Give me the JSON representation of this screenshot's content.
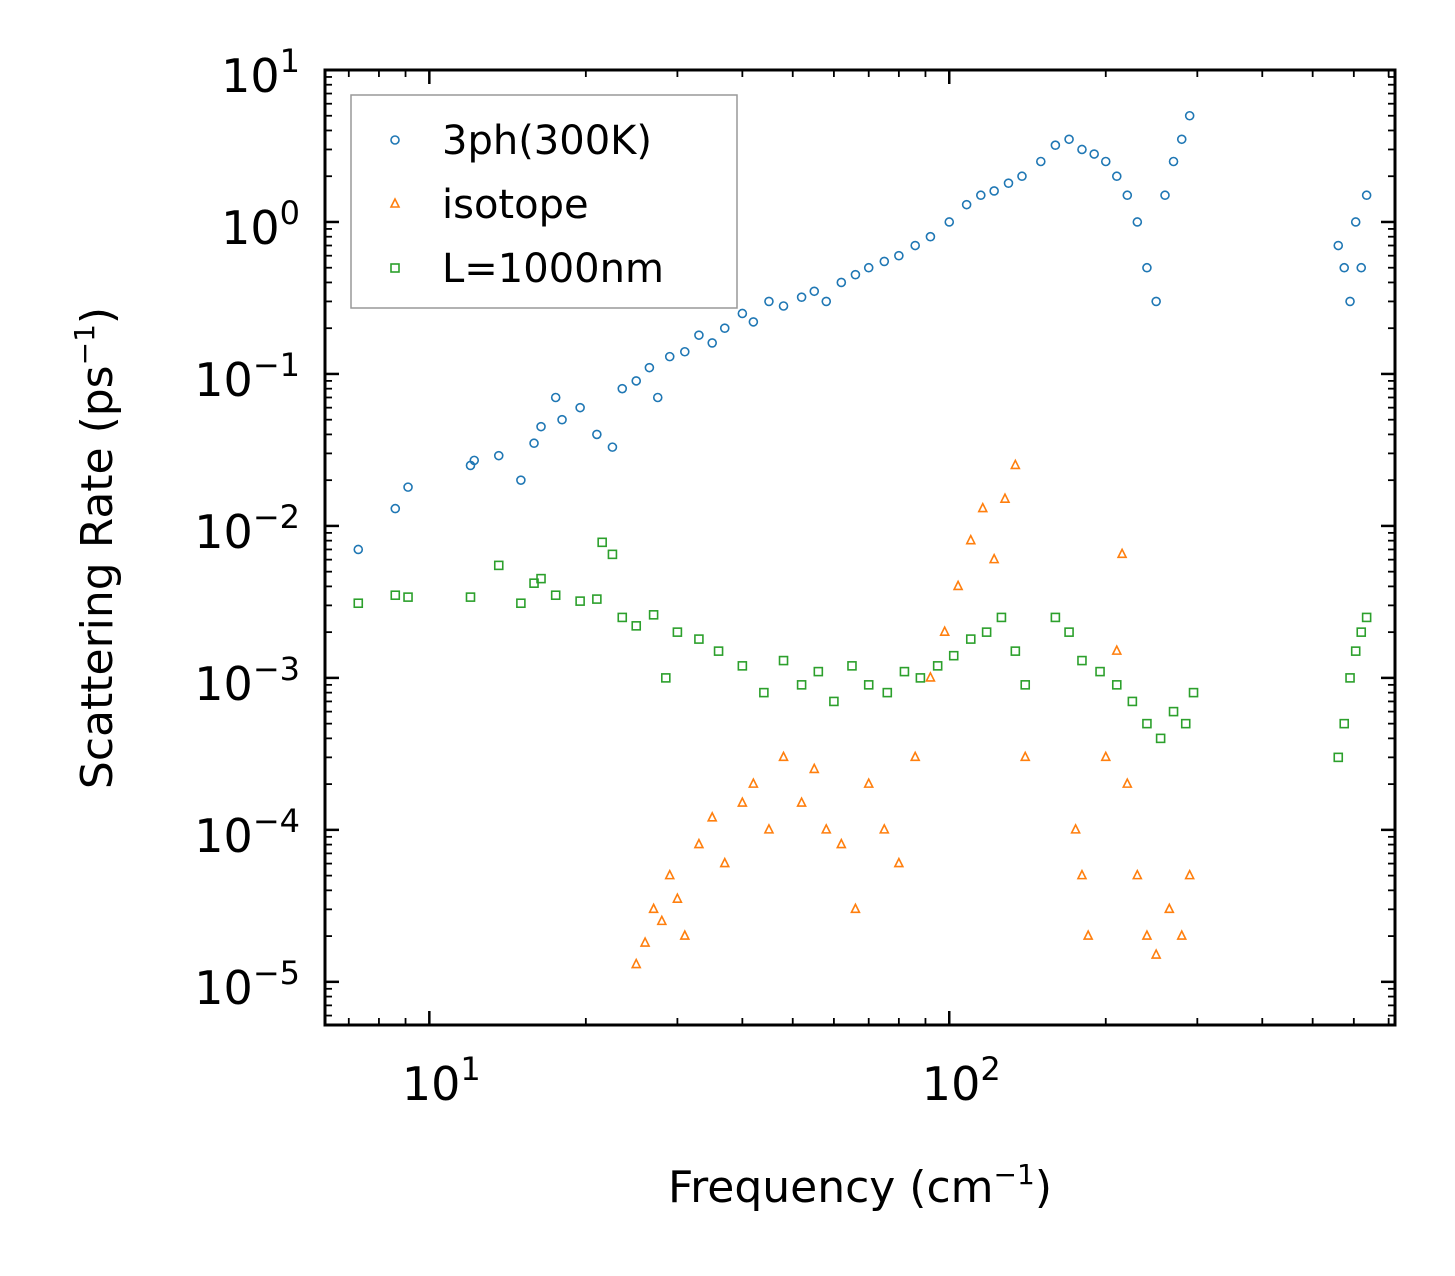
{
  "chart_data": {
    "type": "scatter",
    "title": "",
    "xlabel": {
      "text": "Frequency (cm",
      "sup": "−1",
      "close": ")"
    },
    "ylabel": {
      "text": "Scattering Rate (ps",
      "sup": "−1",
      "close": ")"
    },
    "xscale": "log",
    "yscale": "log",
    "xlim": [
      6.3,
      720
    ],
    "ylim": [
      5.2e-06,
      10
    ],
    "grid": false,
    "legend_position": "top-left",
    "x_ticks": [
      {
        "value": 10,
        "base": "10",
        "exp": "1"
      },
      {
        "value": 100,
        "base": "10",
        "exp": "2"
      }
    ],
    "y_ticks": [
      {
        "value": 10,
        "base": "10",
        "exp": "1"
      },
      {
        "value": 1,
        "base": "10",
        "exp": "0"
      },
      {
        "value": 0.1,
        "base": "10",
        "exp": "−1"
      },
      {
        "value": 0.01,
        "base": "10",
        "exp": "−2"
      },
      {
        "value": 0.001,
        "base": "10",
        "exp": "−3"
      },
      {
        "value": 0.0001,
        "base": "10",
        "exp": "−4"
      },
      {
        "value": 1e-05,
        "base": "10",
        "exp": "−5"
      }
    ],
    "series": [
      {
        "name": "3ph(300K)",
        "marker": "circle",
        "color": "#1f77b4",
        "x": [
          7.3,
          8.6,
          9.1,
          12.0,
          12.2,
          13.6,
          15.0,
          15.9,
          16.4,
          17.5,
          18.0,
          19.5,
          21.0,
          22.5,
          23.5,
          25.0,
          26.5,
          27.5,
          29.0,
          31.0,
          33.0,
          35.0,
          37.0,
          40.0,
          42.0,
          45.0,
          48.0,
          52.0,
          55.0,
          58.0,
          62.0,
          66.0,
          70.0,
          75.0,
          80.0,
          86.0,
          92.0,
          100.0,
          108.0,
          115.0,
          122.0,
          130.0,
          138.0,
          150.0,
          160.0,
          170.0,
          180.0,
          190.0,
          200.0,
          210.0,
          220.0,
          230.0,
          240.0,
          250.0,
          260.0,
          270.0,
          280.0,
          290.0,
          560.0,
          575.0,
          590.0,
          605.0,
          620.0,
          635.0
        ],
        "y": [
          0.007,
          0.013,
          0.018,
          0.025,
          0.027,
          0.029,
          0.02,
          0.035,
          0.045,
          0.07,
          0.05,
          0.06,
          0.04,
          0.033,
          0.08,
          0.09,
          0.11,
          0.07,
          0.13,
          0.14,
          0.18,
          0.16,
          0.2,
          0.25,
          0.22,
          0.3,
          0.28,
          0.32,
          0.35,
          0.3,
          0.4,
          0.45,
          0.5,
          0.55,
          0.6,
          0.7,
          0.8,
          1.0,
          1.3,
          1.5,
          1.6,
          1.8,
          2.0,
          2.5,
          3.2,
          3.5,
          3.0,
          2.8,
          2.5,
          2.0,
          1.5,
          1.0,
          0.5,
          0.3,
          1.5,
          2.5,
          3.5,
          5.0,
          0.7,
          0.5,
          0.3,
          1.0,
          0.5,
          1.5
        ]
      },
      {
        "name": "isotope",
        "marker": "triangle",
        "color": "#ff7f0e",
        "x": [
          25.0,
          26.0,
          27.0,
          28.0,
          29.0,
          30.0,
          31.0,
          33.0,
          35.0,
          37.0,
          40.0,
          42.0,
          45.0,
          48.0,
          52.0,
          55.0,
          58.0,
          62.0,
          66.0,
          70.0,
          75.0,
          80.0,
          86.0,
          92.0,
          98.0,
          104.0,
          110.0,
          116.0,
          122.0,
          128.0,
          134.0,
          140.0,
          175.0,
          180.0,
          185.0,
          200.0,
          210.0,
          215.0,
          220.0,
          230.0,
          240.0,
          250.0,
          265.0,
          280.0,
          290.0
        ],
        "y": [
          1.3e-05,
          1.8e-05,
          3e-05,
          2.5e-05,
          5e-05,
          3.5e-05,
          2e-05,
          8e-05,
          0.00012,
          6e-05,
          0.00015,
          0.0002,
          0.0001,
          0.0003,
          0.00015,
          0.00025,
          0.0001,
          8e-05,
          3e-05,
          0.0002,
          0.0001,
          6e-05,
          0.0003,
          0.001,
          0.002,
          0.004,
          0.008,
          0.013,
          0.006,
          0.015,
          0.025,
          0.0003,
          0.0001,
          5e-05,
          2e-05,
          0.0003,
          0.0015,
          0.0065,
          0.0002,
          5e-05,
          2e-05,
          1.5e-05,
          3e-05,
          2e-05,
          5e-05
        ]
      },
      {
        "name": "L=1000nm",
        "marker": "square",
        "color": "#2ca02c",
        "x": [
          7.3,
          8.6,
          9.1,
          12.0,
          13.6,
          15.0,
          15.9,
          16.4,
          17.5,
          19.5,
          21.0,
          21.5,
          22.5,
          23.5,
          25.0,
          27.0,
          28.5,
          30.0,
          33.0,
          36.0,
          40.0,
          44.0,
          48.0,
          52.0,
          56.0,
          60.0,
          65.0,
          70.0,
          76.0,
          82.0,
          88.0,
          95.0,
          102.0,
          110.0,
          118.0,
          126.0,
          134.0,
          140.0,
          160.0,
          170.0,
          180.0,
          195.0,
          210.0,
          225.0,
          240.0,
          255.0,
          270.0,
          285.0,
          295.0,
          560.0,
          575.0,
          590.0,
          605.0,
          620.0,
          635.0
        ],
        "y": [
          0.0031,
          0.0035,
          0.0034,
          0.0034,
          0.0055,
          0.0031,
          0.0042,
          0.0045,
          0.0035,
          0.0032,
          0.0033,
          0.0078,
          0.0065,
          0.0025,
          0.0022,
          0.0026,
          0.001,
          0.002,
          0.0018,
          0.0015,
          0.0012,
          0.0008,
          0.0013,
          0.0009,
          0.0011,
          0.0007,
          0.0012,
          0.0009,
          0.0008,
          0.0011,
          0.001,
          0.0012,
          0.0014,
          0.0018,
          0.002,
          0.0025,
          0.0015,
          0.0009,
          0.0025,
          0.002,
          0.0013,
          0.0011,
          0.0009,
          0.0007,
          0.0005,
          0.0004,
          0.0006,
          0.0005,
          0.0008,
          0.0003,
          0.0005,
          0.001,
          0.0015,
          0.002,
          0.0025
        ]
      }
    ]
  }
}
